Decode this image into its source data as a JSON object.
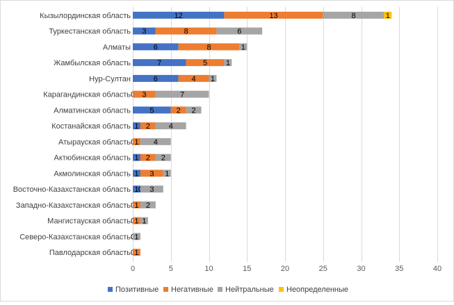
{
  "chart_data": {
    "type": "bar",
    "orientation": "horizontal",
    "stacked": true,
    "categories": [
      "Кызылординская область",
      "Туркестанская область",
      "Алматы",
      "Жамбылская область",
      "Нур-Султан",
      "Карагандинская область",
      "Алматинская область",
      "Костанайская область",
      "Атырауская область",
      "Актюбинская область",
      "Акмолинская область",
      "Восточно-Казахстанская область",
      "Западно-Казахстанская область",
      "Мангистауская область",
      "Северо-Казахстанская область",
      "Павлодарская область"
    ],
    "series": [
      {
        "name": "Позитивные",
        "color": "#4472c4",
        "values": [
          12,
          3,
          6,
          7,
          6,
          0,
          5,
          1,
          0,
          1,
          1,
          1,
          0,
          0,
          0,
          0
        ]
      },
      {
        "name": "Негативные",
        "color": "#ed7d31",
        "values": [
          13,
          8,
          8,
          5,
          4,
          3,
          2,
          2,
          1,
          2,
          3,
          0,
          1,
          1,
          0,
          1
        ]
      },
      {
        "name": "Нейтральные",
        "color": "#a5a5a5",
        "values": [
          8,
          6,
          1,
          1,
          1,
          7,
          2,
          4,
          4,
          2,
          1,
          3,
          2,
          1,
          1,
          0
        ]
      },
      {
        "name": "Неопределенные",
        "color": "#ffc000",
        "values": [
          1,
          0,
          0,
          0,
          0,
          0,
          0,
          0,
          0,
          0,
          0,
          0,
          0,
          0,
          0,
          0
        ]
      }
    ],
    "data_labels": [
      [
        "12",
        "13",
        "8",
        "1"
      ],
      [
        "3",
        "8",
        "6",
        ""
      ],
      [
        "6",
        "8",
        "1",
        ""
      ],
      [
        "7",
        "5",
        "1",
        ""
      ],
      [
        "6",
        "4",
        "1",
        ""
      ],
      [
        "0",
        "3",
        "7",
        ""
      ],
      [
        "5",
        "2",
        "2",
        ""
      ],
      [
        "1",
        "2",
        "4",
        ""
      ],
      [
        "0",
        "1",
        "4",
        ""
      ],
      [
        "1",
        "2",
        "2",
        ""
      ],
      [
        "1",
        "3",
        "1",
        ""
      ],
      [
        "1",
        "0",
        "3",
        ""
      ],
      [
        "0",
        "1",
        "2",
        ""
      ],
      [
        "0",
        "1",
        "1",
        ""
      ],
      [
        "0",
        "0",
        "1",
        ""
      ],
      [
        "0",
        "1",
        "",
        ""
      ]
    ],
    "xlim": [
      0,
      40
    ],
    "xticks": [
      0,
      5,
      10,
      15,
      20,
      25,
      30,
      35,
      40
    ],
    "grid": true,
    "legend_position": "bottom",
    "title": "",
    "xlabel": "",
    "ylabel": ""
  }
}
